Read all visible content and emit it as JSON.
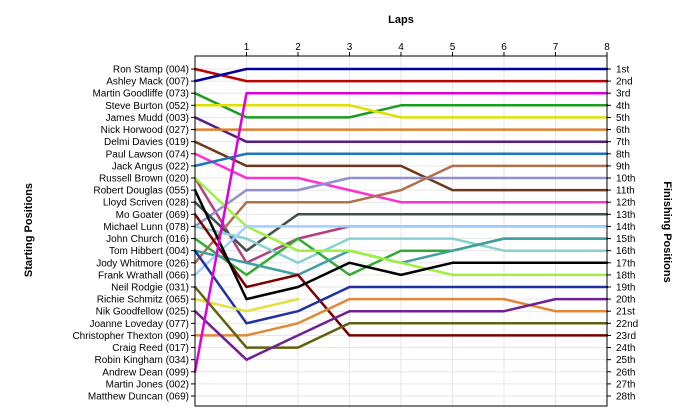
{
  "chart_data": {
    "type": "line",
    "title": "",
    "xlabel": "Laps",
    "ylabel_left": "Starting Positions",
    "ylabel_right": "Finishing Positions",
    "x": [
      0,
      1,
      2,
      3,
      4,
      5,
      6,
      7,
      8
    ],
    "x_ticks": [
      "1",
      "2",
      "3",
      "4",
      "5",
      "6",
      "7",
      "8"
    ],
    "xlim": [
      0,
      8
    ],
    "ylim": [
      1,
      28
    ],
    "y_inverted": true,
    "grid": true,
    "left_labels": [
      "Ron Stamp (004)",
      "Ashley Mack (007)",
      "Martin Goodliffe (073)",
      "Steve Burton (052)",
      "James Mudd (003)",
      "Nick Horwood (027)",
      "Delmi Davies (019)",
      "Paul Lawson (074)",
      "Jack Angus (022)",
      "Russell Brown (020)",
      "Robert Douglas (055)",
      "Lloyd Scriven (028)",
      "Mo Goater (069)",
      "Michael Lunn (078)",
      "John Church (016)",
      "Tom Hibbert (004)",
      "Jody Whitmore (026)",
      "Frank Wrathall (066)",
      "Neil Rodgie (031)",
      "Richie Schmitz (065)",
      "Nik Goodfellow (025)",
      "Joanne Loveday (077)",
      "Christopher Thexton (090)",
      "Craig Reed (017)",
      "Robin Kingham (034)",
      "Andrew Dean (099)",
      "Martin Jones (002)",
      "Matthew Duncan (069)"
    ],
    "right_labels": [
      "1st",
      "2nd",
      "3rd",
      "4th",
      "5th",
      "6th",
      "7th",
      "8th",
      "9th",
      "10th",
      "11th",
      "12th",
      "13th",
      "14th",
      "15th",
      "16th",
      "17th",
      "18th",
      "19th",
      "20th",
      "21st",
      "22nd",
      "23rd",
      "24th",
      "25th",
      "26th",
      "27th",
      "28th"
    ],
    "series": [
      {
        "color": "#c00000",
        "values": [
          1,
          2,
          2,
          2,
          2,
          2,
          2,
          2,
          2
        ]
      },
      {
        "color": "#0000a0",
        "values": [
          2,
          1,
          1,
          1,
          1,
          1,
          1,
          1,
          1
        ]
      },
      {
        "color": "#1a9c20",
        "values": [
          3,
          5,
          5,
          5,
          4,
          4,
          4,
          4,
          4
        ]
      },
      {
        "color": "#e0e000",
        "values": [
          4,
          4,
          4,
          4,
          5,
          5,
          5,
          5,
          5
        ]
      },
      {
        "color": "#5a1a80",
        "values": [
          5,
          7,
          7,
          7,
          7,
          7,
          7,
          7,
          7
        ]
      },
      {
        "color": "#e08030",
        "values": [
          6,
          6,
          6,
          6,
          6,
          6,
          6,
          6,
          6
        ]
      },
      {
        "color": "#6a3a1a",
        "values": [
          7,
          9,
          9,
          9,
          9,
          11,
          11,
          11,
          11
        ]
      },
      {
        "color": "#ff30d0",
        "values": [
          8,
          10,
          10,
          11,
          12,
          12,
          12,
          12,
          12
        ]
      },
      {
        "color": "#1878b8",
        "values": [
          9,
          8,
          8,
          8,
          8,
          8,
          8,
          8,
          8
        ]
      },
      {
        "color": "#b04080",
        "values": [
          10,
          17,
          15,
          14,
          14,
          14,
          14,
          14,
          14
        ]
      },
      {
        "color": "#9090d0",
        "values": [
          14,
          11,
          11,
          10,
          10,
          10,
          10,
          10,
          10
        ]
      },
      {
        "color": "#b07050",
        "values": [
          17,
          12,
          12,
          12,
          11,
          9,
          9,
          9,
          9
        ]
      },
      {
        "color": "#405050",
        "values": [
          12,
          16,
          13,
          13,
          13,
          13,
          13,
          13,
          13
        ]
      },
      {
        "color": "#88d0d0",
        "values": [
          14,
          15,
          17,
          15,
          15,
          15,
          16,
          16,
          16
        ]
      },
      {
        "color": "#33aa33",
        "values": [
          15,
          18,
          15,
          18,
          16,
          16,
          15,
          15,
          15
        ]
      },
      {
        "color": "#40a0a0",
        "values": [
          16,
          17,
          18,
          16,
          17,
          16,
          15,
          15,
          15
        ]
      },
      {
        "color": "#a0f040",
        "values": [
          10,
          14,
          16,
          16,
          17,
          18,
          18,
          18,
          18
        ]
      },
      {
        "color": "#a0d0ff",
        "values": [
          18,
          14,
          14,
          14,
          14,
          14,
          14,
          14,
          14
        ]
      },
      {
        "color": "#7a0000",
        "values": [
          13,
          19,
          18,
          23,
          23,
          23,
          23,
          23,
          23
        ]
      },
      {
        "color": "#000000",
        "values": [
          11,
          20,
          19,
          17,
          18,
          17,
          17,
          17,
          17
        ]
      },
      {
        "color": "#2030a0",
        "values": [
          16,
          22,
          21,
          19,
          19,
          19,
          19,
          19,
          19
        ]
      },
      {
        "color": "#e0e040",
        "values": [
          20,
          21,
          20,
          null,
          null,
          null,
          null,
          null,
          null
        ]
      },
      {
        "color": "#e08838",
        "values": [
          23,
          23,
          22,
          20,
          20,
          20,
          20,
          21,
          21
        ]
      },
      {
        "color": "#606010",
        "values": [
          19,
          24,
          24,
          22,
          22,
          22,
          22,
          22,
          22
        ]
      },
      {
        "color": "#702090",
        "values": [
          21,
          25,
          23,
          21,
          21,
          21,
          21,
          20,
          20
        ]
      },
      {
        "color": "#dd00dd",
        "values": [
          26,
          3,
          3,
          3,
          3,
          3,
          3,
          3,
          3
        ]
      },
      {
        "color": "#000000",
        "values": [
          27,
          null,
          null,
          null,
          null,
          null,
          null,
          null,
          null
        ]
      },
      {
        "color": "#000000",
        "values": [
          28,
          null,
          null,
          null,
          null,
          null,
          null,
          null,
          null
        ]
      }
    ]
  }
}
